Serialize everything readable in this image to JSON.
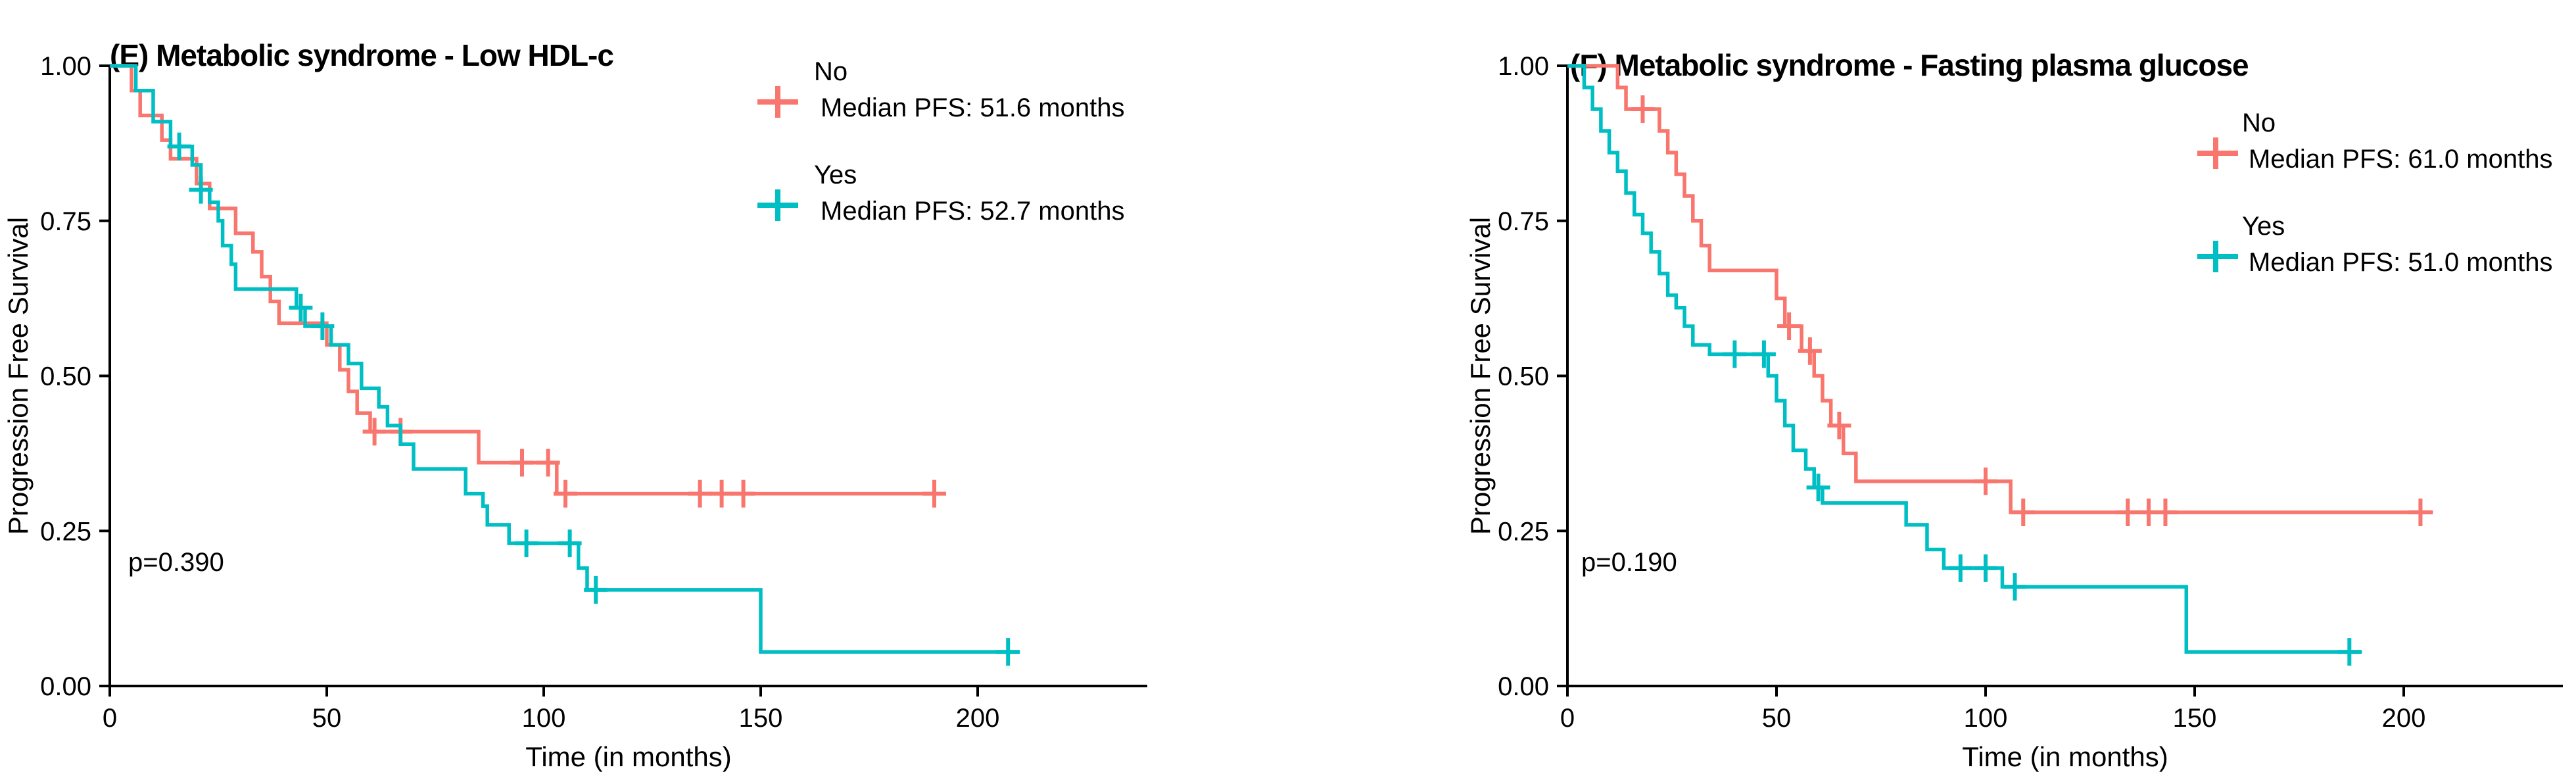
{
  "chart_data": [
    {
      "type": "line",
      "subtype": "kaplan-meier-survival",
      "title": "(E) Metabolic syndrome - Low HDL-c",
      "xlabel": "Time (in months)",
      "ylabel": "Progression Free Survival",
      "p_value_label": "p=0.390",
      "xlim": [
        0,
        239
      ],
      "ylim": [
        0,
        1
      ],
      "grid": "off",
      "legend_position": "top-right-inside",
      "xticks": [
        0,
        50,
        100,
        150,
        200
      ],
      "xtick_labels": [
        "0",
        "50",
        "100",
        "150",
        "200"
      ],
      "yticks": [
        0,
        0.25,
        0.5,
        0.75,
        1
      ],
      "ytick_labels": [
        "0.00",
        "0.25",
        "0.50",
        "0.75",
        "1.00"
      ],
      "series": [
        {
          "name": "No",
          "legend_label": "No",
          "legend_sublabel": "Median PFS: 51.6 months",
          "color": "#F8766D",
          "steps": [
            [
              0,
              1.0
            ],
            [
              5,
              0.96
            ],
            [
              7,
              0.92
            ],
            [
              12,
              0.88
            ],
            [
              14,
              0.85
            ],
            [
              20,
              0.81
            ],
            [
              23,
              0.77
            ],
            [
              29,
              0.73
            ],
            [
              33,
              0.7
            ],
            [
              35,
              0.66
            ],
            [
              37,
              0.62
            ],
            [
              39,
              0.585
            ],
            [
              50,
              0.55
            ],
            [
              53,
              0.51
            ],
            [
              55,
              0.475
            ],
            [
              57,
              0.44
            ],
            [
              60,
              0.41
            ],
            [
              85,
              0.36
            ],
            [
              103,
              0.31
            ]
          ],
          "censor_times": [
            61,
            67,
            95,
            101,
            105,
            136,
            141,
            146,
            190
          ],
          "end_time": 190
        },
        {
          "name": "Yes",
          "legend_label": "Yes",
          "legend_sublabel": "Median PFS: 52.7 months",
          "color": "#00BFC4",
          "steps": [
            [
              0,
              1.0
            ],
            [
              6,
              0.96
            ],
            [
              10,
              0.91
            ],
            [
              14,
              0.87
            ],
            [
              19,
              0.84
            ],
            [
              21,
              0.8
            ],
            [
              23,
              0.78
            ],
            [
              25,
              0.75
            ],
            [
              26,
              0.71
            ],
            [
              28,
              0.68
            ],
            [
              29,
              0.64
            ],
            [
              43,
              0.61
            ],
            [
              45,
              0.58
            ],
            [
              51,
              0.55
            ],
            [
              55,
              0.52
            ],
            [
              58,
              0.48
            ],
            [
              62,
              0.45
            ],
            [
              64,
              0.42
            ],
            [
              67,
              0.39
            ],
            [
              70,
              0.35
            ],
            [
              82,
              0.31
            ],
            [
              86,
              0.29
            ],
            [
              87,
              0.26
            ],
            [
              92,
              0.23
            ],
            [
              108,
              0.19
            ],
            [
              110,
              0.155
            ],
            [
              150,
              0.055
            ]
          ],
          "censor_times": [
            16,
            21,
            44,
            49,
            96,
            106,
            112,
            207
          ],
          "end_time": 207
        }
      ]
    },
    {
      "type": "line",
      "subtype": "kaplan-meier-survival",
      "title": "(F) Metabolic syndrome - Fasting plasma glucose",
      "xlabel": "Time (in months)",
      "ylabel": "Progression Free Survival",
      "p_value_label": "p=0.190",
      "xlim": [
        0,
        238
      ],
      "ylim": [
        0,
        1
      ],
      "grid": "off",
      "legend_position": "top-right-inside",
      "xticks": [
        0,
        50,
        100,
        150,
        200
      ],
      "xtick_labels": [
        "0",
        "50",
        "100",
        "150",
        "200"
      ],
      "yticks": [
        0,
        0.25,
        0.5,
        0.75,
        1
      ],
      "ytick_labels": [
        "0.00",
        "0.25",
        "0.50",
        "0.75",
        "1.00"
      ],
      "series": [
        {
          "name": "No",
          "legend_label": "No",
          "legend_sublabel": "Median PFS: 61.0 months",
          "color": "#F8766D",
          "steps": [
            [
              0,
              1.0
            ],
            [
              12,
              0.965
            ],
            [
              14,
              0.93
            ],
            [
              22,
              0.895
            ],
            [
              24,
              0.86
            ],
            [
              26,
              0.825
            ],
            [
              28,
              0.79
            ],
            [
              30,
              0.75
            ],
            [
              32,
              0.71
            ],
            [
              34,
              0.67
            ],
            [
              50,
              0.625
            ],
            [
              52,
              0.58
            ],
            [
              56,
              0.54
            ],
            [
              59,
              0.5
            ],
            [
              61,
              0.46
            ],
            [
              63,
              0.42
            ],
            [
              66,
              0.375
            ],
            [
              69,
              0.33
            ],
            [
              106,
              0.28
            ]
          ],
          "censor_times": [
            18,
            53,
            58,
            65,
            100,
            109,
            134,
            139,
            143,
            204
          ],
          "end_time": 207
        },
        {
          "name": "Yes",
          "legend_label": "Yes",
          "legend_sublabel": "Median PFS: 51.0 months",
          "color": "#00BFC4",
          "steps": [
            [
              0,
              1.0
            ],
            [
              4,
              0.965
            ],
            [
              6,
              0.93
            ],
            [
              8,
              0.895
            ],
            [
              10,
              0.86
            ],
            [
              12,
              0.83
            ],
            [
              14,
              0.795
            ],
            [
              16,
              0.76
            ],
            [
              18,
              0.73
            ],
            [
              20,
              0.7
            ],
            [
              22,
              0.665
            ],
            [
              24,
              0.63
            ],
            [
              26,
              0.61
            ],
            [
              28,
              0.58
            ],
            [
              30,
              0.55
            ],
            [
              34,
              0.535
            ],
            [
              48,
              0.5
            ],
            [
              50,
              0.46
            ],
            [
              52,
              0.42
            ],
            [
              54,
              0.38
            ],
            [
              57,
              0.35
            ],
            [
              59,
              0.32
            ],
            [
              61,
              0.295
            ],
            [
              81,
              0.26
            ],
            [
              86,
              0.22
            ],
            [
              90,
              0.19
            ],
            [
              104,
              0.16
            ],
            [
              148,
              0.055
            ]
          ],
          "censor_times": [
            40,
            47,
            60,
            94,
            100,
            107,
            187
          ],
          "end_time": 190
        }
      ]
    }
  ]
}
